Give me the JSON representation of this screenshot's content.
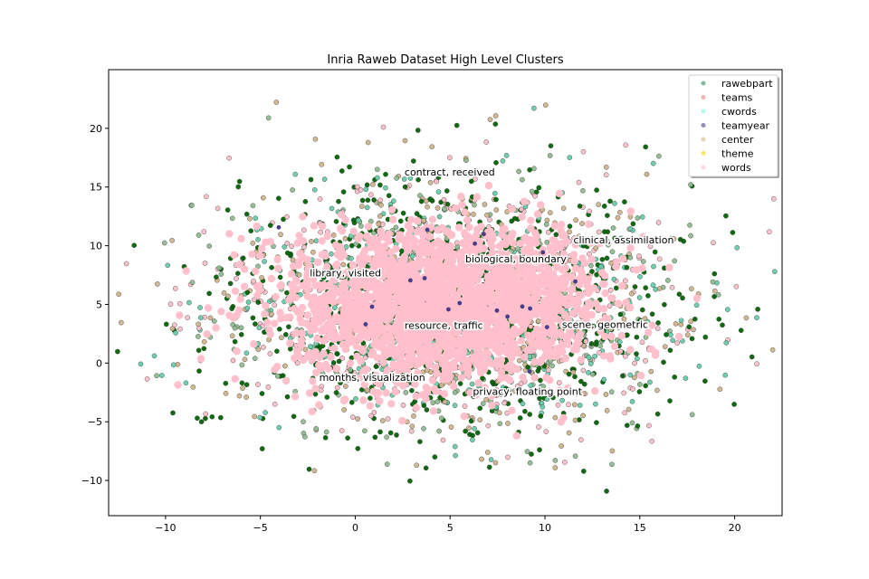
{
  "chart_data": {
    "type": "scatter",
    "title": "Inria Raweb Dataset High Level Clusters",
    "xlabel": "",
    "ylabel": "",
    "xlim": [
      -13,
      22.5
    ],
    "ylim": [
      -13,
      25
    ],
    "x_ticks": [
      -10,
      -5,
      0,
      5,
      10,
      15,
      20
    ],
    "y_ticks": [
      -10,
      -5,
      0,
      5,
      10,
      15,
      20
    ],
    "x_tick_labels": [
      "−10",
      "−5",
      "0",
      "5",
      "10",
      "15",
      "20"
    ],
    "y_tick_labels": [
      "−10",
      "−5",
      "0",
      "5",
      "10",
      "15",
      "20"
    ],
    "grid": false,
    "legend_position": "top-right",
    "series": [
      {
        "name": "rawebpart",
        "color": "#2e8b57"
      },
      {
        "name": "teams",
        "color": "#f08080"
      },
      {
        "name": "cwords",
        "color": "#7fffd4"
      },
      {
        "name": "teamyear",
        "color": "#483d8b"
      },
      {
        "name": "center",
        "color": "#d2b48c"
      },
      {
        "name": "theme",
        "color": "#ffd700"
      },
      {
        "name": "words",
        "color": "#ffc0cb"
      }
    ],
    "annotations": [
      {
        "text": "contract, received",
        "x": 2.6,
        "y": 16.0
      },
      {
        "text": "clinical, assimilation",
        "x": 11.5,
        "y": 10.2
      },
      {
        "text": "biological, boundary",
        "x": 5.8,
        "y": 8.6
      },
      {
        "text": "library, visited",
        "x": -2.4,
        "y": 7.4
      },
      {
        "text": "resource, traffic",
        "x": 2.6,
        "y": 2.9
      },
      {
        "text": "scene, geometric",
        "x": 10.9,
        "y": 3.0
      },
      {
        "text": "months, visualization",
        "x": -1.9,
        "y": -1.5
      },
      {
        "text": "privacy, floating point",
        "x": 6.2,
        "y": -2.7
      }
    ]
  }
}
